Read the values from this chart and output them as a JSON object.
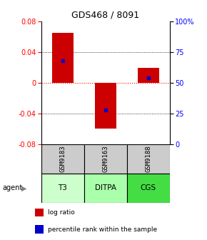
{
  "title": "GDS468 / 8091",
  "samples": [
    "GSM9183",
    "GSM9163",
    "GSM9188"
  ],
  "agents": [
    "T3",
    "DITPA",
    "CGS"
  ],
  "bar_tops": [
    0.065,
    0.0,
    0.02
  ],
  "bar_bottoms": [
    0.0,
    -0.06,
    0.0
  ],
  "percentile_ranks": [
    0.68,
    0.28,
    0.54
  ],
  "ylim": [
    -0.08,
    0.08
  ],
  "yticks_left": [
    -0.08,
    -0.04,
    0.0,
    0.04,
    0.08
  ],
  "yticks_right": [
    0,
    25,
    50,
    75,
    100
  ],
  "bar_color": "#cc0000",
  "dot_color": "#0000cc",
  "agent_colors": [
    "#ccffcc",
    "#aaffaa",
    "#44dd44"
  ],
  "sample_bg": "#cccccc",
  "legend_items": [
    "log ratio",
    "percentile rank within the sample"
  ]
}
